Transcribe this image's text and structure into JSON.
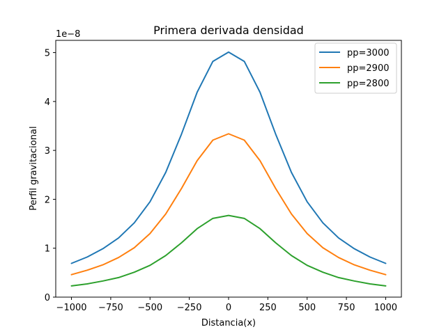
{
  "chart_data": {
    "type": "line",
    "title": "Primera derivada densidad",
    "xlabel": "Distancia(x)",
    "ylabel": "Perfil gravitacional",
    "y_offset_text": "1e−8",
    "xlim": [
      -1100,
      1100
    ],
    "ylim": [
      0,
      5.25
    ],
    "xticks": [
      -1000,
      -750,
      -500,
      -250,
      0,
      250,
      500,
      750,
      1000
    ],
    "xtick_labels": [
      "−1000",
      "−750",
      "−500",
      "−250",
      "0",
      "250",
      "500",
      "750",
      "1000"
    ],
    "yticks": [
      0,
      1,
      2,
      3,
      4,
      5
    ],
    "ytick_labels": [
      "0",
      "1",
      "2",
      "3",
      "4",
      "5"
    ],
    "grid": false,
    "legend_position": "top-right",
    "x": [
      -1000,
      -900,
      -800,
      -700,
      -600,
      -500,
      -400,
      -300,
      -200,
      -100,
      0,
      100,
      200,
      300,
      400,
      500,
      600,
      700,
      800,
      900,
      1000
    ],
    "series": [
      {
        "name": "pp=3000",
        "color": "#1f77b4",
        "values": [
          0.69,
          0.82,
          0.99,
          1.21,
          1.52,
          1.95,
          2.55,
          3.33,
          4.19,
          4.82,
          5.01,
          4.82,
          4.19,
          3.33,
          2.55,
          1.95,
          1.52,
          1.21,
          0.99,
          0.82,
          0.69
        ]
      },
      {
        "name": "pp=2900",
        "color": "#ff7f0e",
        "values": [
          0.46,
          0.55,
          0.66,
          0.81,
          1.01,
          1.3,
          1.7,
          2.22,
          2.79,
          3.21,
          3.34,
          3.21,
          2.79,
          2.22,
          1.7,
          1.3,
          1.01,
          0.81,
          0.66,
          0.55,
          0.46
        ]
      },
      {
        "name": "pp=2800",
        "color": "#2ca02c",
        "values": [
          0.23,
          0.27,
          0.33,
          0.4,
          0.51,
          0.65,
          0.85,
          1.11,
          1.4,
          1.61,
          1.67,
          1.61,
          1.4,
          1.11,
          0.85,
          0.65,
          0.51,
          0.4,
          0.33,
          0.27,
          0.23
        ]
      }
    ]
  }
}
